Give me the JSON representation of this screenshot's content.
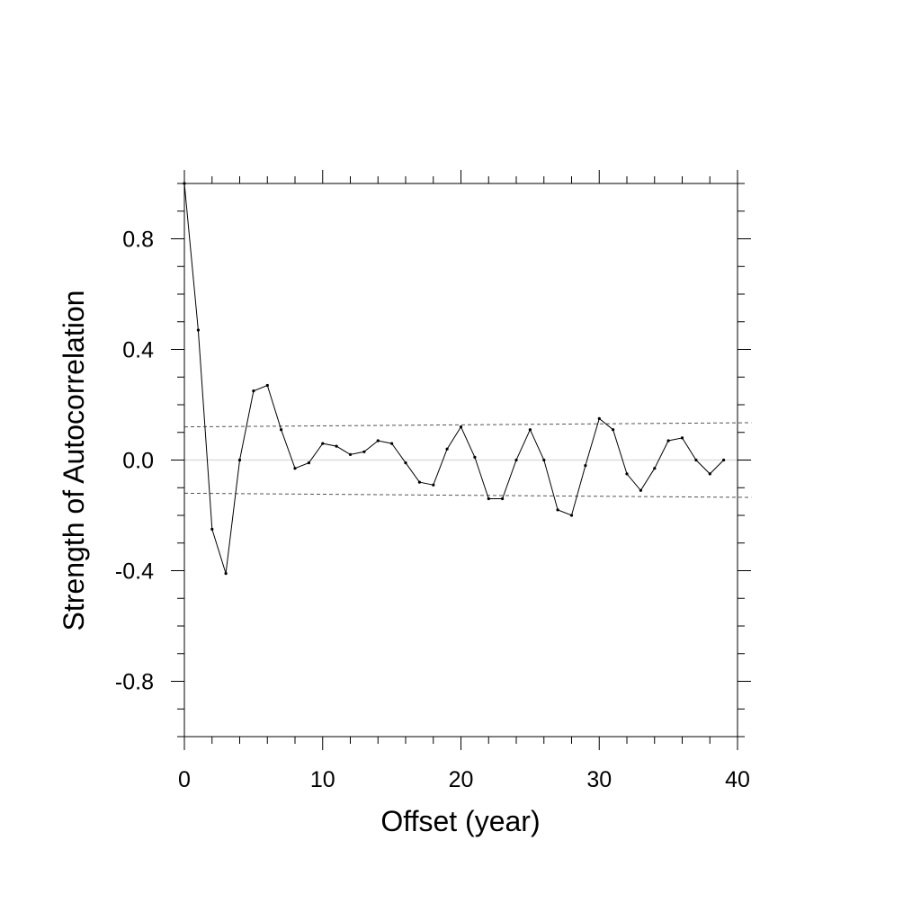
{
  "chart_data": {
    "type": "line",
    "xlabel": "Offset (year)",
    "ylabel": "Strength of Autocorrelation",
    "xlim": [
      0,
      40
    ],
    "ylim": [
      -1.0,
      1.0
    ],
    "x_ticks": [
      0,
      10,
      20,
      30,
      40
    ],
    "x_tick_labels": [
      "0",
      "10",
      "20",
      "30",
      "40"
    ],
    "y_ticks": [
      0.8,
      0.4,
      0.0,
      -0.4,
      -0.8
    ],
    "y_tick_labels": [
      "0.8",
      "0.4",
      "0.0",
      "-0.4",
      "-0.8"
    ],
    "grid": false,
    "series": [
      {
        "style": "solid-line-with-dots",
        "color": "#000000",
        "x": [
          0,
          1,
          2,
          3,
          4,
          5,
          6,
          7,
          8,
          9,
          10,
          11,
          12,
          13,
          14,
          15,
          16,
          17,
          18,
          19,
          20,
          21,
          22,
          23,
          24,
          25,
          26,
          27,
          28,
          29,
          30,
          31,
          32,
          33,
          34,
          35,
          36,
          37,
          38,
          39
        ],
        "values": [
          1.0,
          0.47,
          -0.25,
          -0.41,
          0.0,
          0.25,
          0.27,
          0.11,
          -0.03,
          -0.01,
          0.06,
          0.05,
          0.02,
          0.03,
          0.07,
          0.06,
          -0.01,
          -0.08,
          -0.09,
          0.04,
          0.12,
          0.01,
          -0.14,
          -0.14,
          0.0,
          0.11,
          0.0,
          -0.18,
          -0.2,
          -0.02,
          0.15,
          0.11,
          -0.05,
          -0.11,
          -0.03,
          0.07,
          0.08,
          0.0,
          -0.05,
          0.0
        ]
      }
    ],
    "reference_lines": [
      {
        "style": "dashed",
        "color": "#555555",
        "x": [
          0,
          41
        ],
        "values": [
          0.12,
          0.135
        ]
      },
      {
        "style": "dashed",
        "color": "#555555",
        "x": [
          0,
          41
        ],
        "values": [
          -0.12,
          -0.135
        ]
      },
      {
        "style": "solid",
        "color": "#dddddd",
        "x": [
          0,
          41
        ],
        "values": [
          0.0,
          0.0
        ]
      }
    ]
  }
}
